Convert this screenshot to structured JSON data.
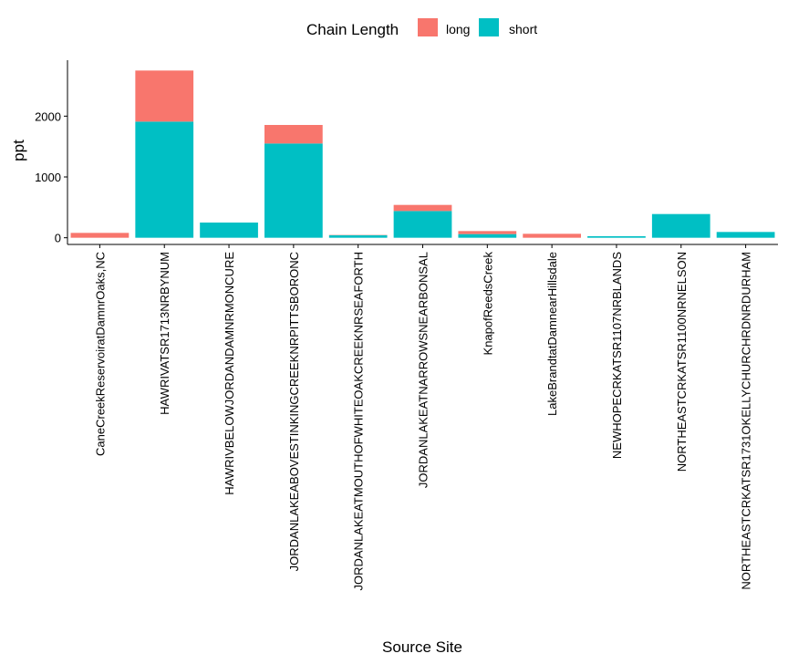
{
  "chart_data": {
    "type": "bar",
    "stacked": true,
    "title": "",
    "xlabel": "Source Site",
    "ylabel": "ppt",
    "ylim": [
      -110,
      2920
    ],
    "yticks": [
      0,
      1000,
      2000
    ],
    "grid": false,
    "legend": {
      "title": "Chain Length",
      "position": "top"
    },
    "colors": {
      "long": "#F8766D",
      "short": "#00BFC4"
    },
    "categories": [
      "CaneCreekReservoiratDamnrOaks,NC",
      "HAWRIVATSR1713NRBYNUM",
      "HAWRIVBELOWJORDANDAMNRMONCURE",
      "JORDANLAKEABOVESTINKINGCREEKNRPITTSBORONC",
      "JORDANLAKEATMOUTHOFWHITEOAKCREEKNRSEAFORTH",
      "JORDANLAKEATNARROWSNEARBONSAL",
      "KnapofReedsCreek",
      "LakeBrandtatDamnearHillsdale",
      "NEWHOPECRKATSR1107NRBLANDS",
      "NORTHEASTCRKATSR1100NRNELSON",
      "NORTHEASTCRKATSR1731OKELLYCHURCHRDNRDURHAM"
    ],
    "series": [
      {
        "name": "short",
        "values": [
          0,
          1910,
          250,
          1550,
          40,
          440,
          60,
          0,
          25,
          390,
          95
        ]
      },
      {
        "name": "long",
        "values": [
          80,
          840,
          0,
          305,
          5,
          100,
          50,
          65,
          0,
          0,
          0
        ]
      }
    ]
  }
}
